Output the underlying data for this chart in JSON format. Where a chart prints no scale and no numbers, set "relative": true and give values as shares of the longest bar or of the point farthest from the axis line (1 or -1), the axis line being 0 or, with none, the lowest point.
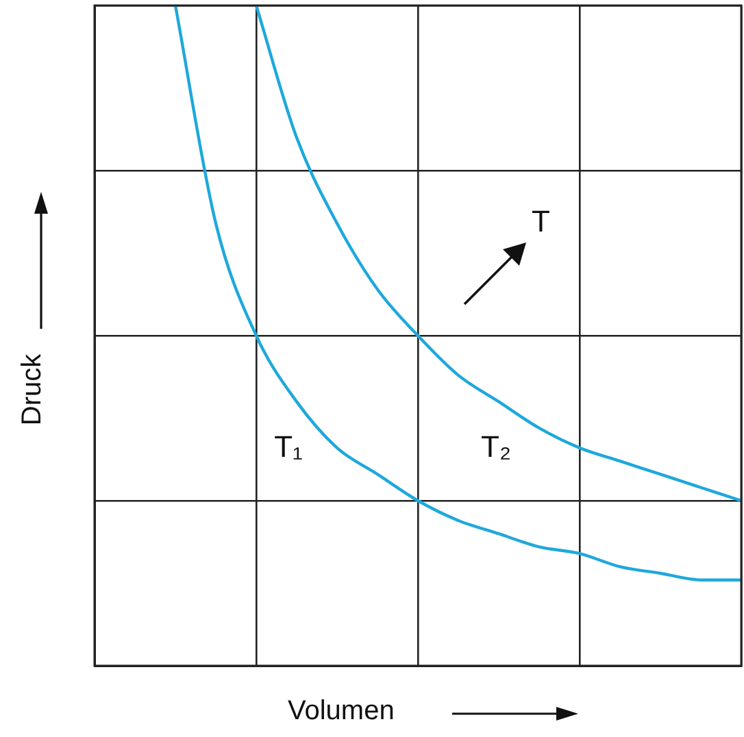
{
  "chart_data": {
    "type": "line",
    "relative": true,
    "xlabel": "Volumen",
    "ylabel": "Druck",
    "annotations": [
      "T"
    ],
    "categories": [
      null,
      null,
      null,
      null,
      null,
      null,
      null,
      null,
      null,
      null,
      null,
      null,
      null,
      null,
      null,
      null,
      null
    ],
    "series": [
      {
        "name": "T₁",
        "color": "#1ea8dc",
        "values": [
          null,
          null,
          1,
          0.67,
          0.5,
          0.4,
          0.33,
          0.29,
          0.25,
          0.22,
          0.2,
          0.18,
          0.17,
          0.15,
          0.14,
          0.13,
          0.13
        ]
      },
      {
        "name": "T₂",
        "color": "#1ea8dc",
        "values": [
          null,
          null,
          null,
          null,
          1,
          0.8,
          0.67,
          0.57,
          0.5,
          0.44,
          0.4,
          0.36,
          0.33,
          0.31,
          0.29,
          0.27,
          0.25
        ]
      }
    ],
    "grid": true,
    "legend": false,
    "marker": "none"
  }
}
